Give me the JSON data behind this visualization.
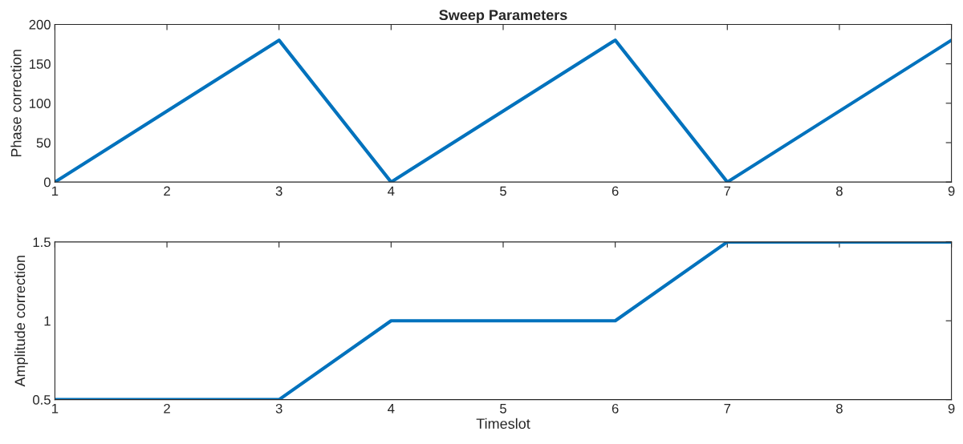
{
  "chart_data": [
    {
      "type": "line",
      "title": "Sweep Parameters",
      "ylabel": "Phase correction",
      "x": [
        1,
        3,
        4,
        6,
        7,
        9
      ],
      "series": [
        {
          "color": "#0072bd",
          "values": [
            0,
            180,
            0,
            180,
            0,
            180
          ]
        }
      ],
      "xlim": [
        1,
        9
      ],
      "xticks": [
        1,
        2,
        3,
        4,
        5,
        6,
        7,
        8,
        9
      ],
      "ylim": [
        0,
        200
      ],
      "yticks": [
        0,
        50,
        100,
        150,
        200
      ],
      "grid": false
    },
    {
      "type": "line",
      "xlabel": "Timeslot",
      "ylabel": "Amplitude correction",
      "x": [
        1,
        3,
        4,
        6,
        7,
        9
      ],
      "series": [
        {
          "color": "#0072bd",
          "values": [
            0.5,
            0.5,
            1,
            1,
            1.5,
            1.5
          ]
        }
      ],
      "xlim": [
        1,
        9
      ],
      "xticks": [
        1,
        2,
        3,
        4,
        5,
        6,
        7,
        8,
        9
      ],
      "ylim": [
        0.5,
        1.5
      ],
      "yticks": [
        {
          "value": 0.5,
          "label": "0.5"
        },
        {
          "value": 1,
          "label": "1"
        },
        {
          "value": 1.5,
          "label": "1.5"
        }
      ],
      "grid": false
    }
  ]
}
